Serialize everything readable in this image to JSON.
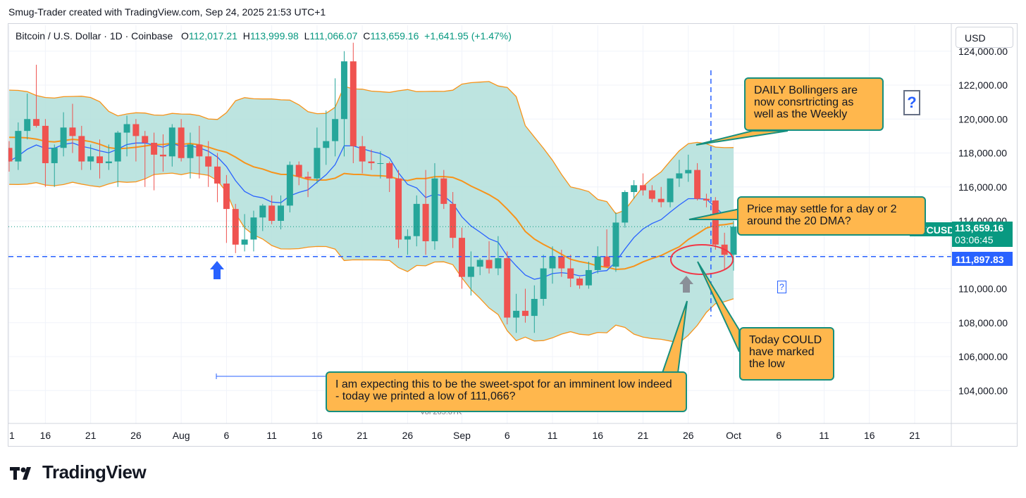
{
  "header": {
    "attribution": "Smug-Trader created with TradingView.com, Sep 24, 2025 21:53 UTC+1"
  },
  "legend": {
    "symbol": "Bitcoin / U.S. Dollar · 1D · Coinbase",
    "o_label": "O",
    "o": "112,017.21",
    "h_label": "H",
    "h": "113,999.98",
    "l_label": "L",
    "l": "111,066.07",
    "c_label": "C",
    "c": "113,659.16",
    "change": "+1,641.95 (+1.47%)"
  },
  "currency": "USD",
  "price_tags": {
    "symbol": "BTCUSD",
    "last_price": "113,659.16",
    "countdown": "03:06:45",
    "hline_price": "111,897.83"
  },
  "volume_label": "Vol 265.67K",
  "brand": "TradingView",
  "annotations": {
    "bollinger": "DAILY Bollingers are now consrtricting as well as the Weekly",
    "dma": "Price may settle for a day or 2 around the 20 DMA?",
    "low": "Today COULD have marked the low",
    "sweet_spot": "I am expecting this to be the sweet-spot for an imminent low indeed - today we printed a low of 111,066?",
    "question_big": "?",
    "question_small": "?"
  },
  "colors": {
    "up": "#26a69a",
    "down": "#ef5350",
    "band_fill": "#b2dfdb",
    "band_line": "#f7931a",
    "sma": "#f7931a",
    "fast_ma": "#2962ff",
    "callout_fill": "#ffb74d",
    "callout_border": "#168f7e",
    "hline": "#2962ff"
  },
  "chart_data": {
    "type": "candlestick",
    "y_axis": {
      "ticks": [
        104000,
        106000,
        108000,
        110000,
        114000,
        116000,
        118000,
        120000,
        122000,
        124000
      ],
      "tick_labels": [
        "104,000.00",
        "106,000.00",
        "108,000.00",
        "110,000.00",
        "114,000.00",
        "116,000.00",
        "118,000.00",
        "120,000.00",
        "122,000.00",
        "124,000.00"
      ],
      "range": [
        102000,
        125000
      ]
    },
    "x_axis": {
      "labels": [
        "1",
        "16",
        "21",
        "26",
        "Aug",
        "6",
        "11",
        "16",
        "21",
        "26",
        "Sep",
        "6",
        "11",
        "16",
        "21",
        "26",
        "Oct",
        "6",
        "11",
        "16",
        "21"
      ],
      "label_days": [
        0,
        4,
        9,
        14,
        19,
        24,
        29,
        34,
        39,
        44,
        50,
        55,
        60,
        65,
        70,
        75,
        80,
        85,
        90,
        95,
        100
      ]
    },
    "horizontal_line": 111897.83,
    "vertical_line_day": 77.5,
    "ohlc": [
      [
        118300,
        118700,
        116900,
        117500
      ],
      [
        117500,
        119800,
        117000,
        119300
      ],
      [
        119300,
        121500,
        118800,
        120000
      ],
      [
        120000,
        123200,
        119500,
        119600
      ],
      [
        119600,
        120000,
        116000,
        117400
      ],
      [
        117400,
        118500,
        116000,
        118300
      ],
      [
        118300,
        120400,
        117800,
        119500
      ],
      [
        119500,
        120900,
        118000,
        119000
      ],
      [
        119000,
        119600,
        117000,
        117500
      ],
      [
        117500,
        118500,
        117000,
        117800
      ],
      [
        117800,
        118800,
        116500,
        117400
      ],
      [
        117400,
        118500,
        117000,
        117500
      ],
      [
        117500,
        119300,
        116000,
        119200
      ],
      [
        119200,
        120200,
        117800,
        119700
      ],
      [
        119700,
        120000,
        117500,
        119000
      ],
      [
        119000,
        119300,
        116000,
        118600
      ],
      [
        118600,
        119200,
        115800,
        117900
      ],
      [
        117900,
        119100,
        116900,
        117800
      ],
      [
        117800,
        119700,
        117200,
        119500
      ],
      [
        119500,
        120000,
        117500,
        117700
      ],
      [
        117700,
        119200,
        116500,
        118500
      ],
      [
        118500,
        119600,
        116500,
        117800
      ],
      [
        117800,
        118700,
        116000,
        117200
      ],
      [
        117200,
        118000,
        115100,
        116200
      ],
      [
        116200,
        116700,
        112700,
        114700
      ],
      [
        114700,
        115000,
        112100,
        112600
      ],
      [
        112600,
        114400,
        112200,
        112900
      ],
      [
        112900,
        114600,
        112200,
        114200
      ],
      [
        114200,
        115000,
        113400,
        114900
      ],
      [
        114900,
        115500,
        113800,
        114000
      ],
      [
        114000,
        115500,
        113500,
        114900
      ],
      [
        114900,
        117500,
        114500,
        117300
      ],
      [
        117300,
        117500,
        116100,
        116600
      ],
      [
        116600,
        116900,
        115400,
        116500
      ],
      [
        116500,
        119500,
        116200,
        118300
      ],
      [
        118300,
        120500,
        117300,
        118700
      ],
      [
        118700,
        122400,
        117800,
        120000
      ],
      [
        120000,
        124000,
        117800,
        123400
      ],
      [
        123400,
        124500,
        117400,
        118400
      ],
      [
        118400,
        119000,
        116800,
        117500
      ],
      [
        117500,
        118200,
        117000,
        117400
      ],
      [
        117400,
        118100,
        116500,
        117400
      ],
      [
        117400,
        117500,
        115700,
        116500
      ],
      [
        116500,
        117000,
        112400,
        112900
      ],
      [
        112900,
        113500,
        112000,
        113100
      ],
      [
        113100,
        115500,
        112500,
        115000
      ],
      [
        115000,
        117000,
        112000,
        112800
      ],
      [
        112800,
        117400,
        112300,
        116500
      ],
      [
        116500,
        117000,
        114700,
        115000
      ],
      [
        115000,
        115700,
        112400,
        113000
      ],
      [
        113000,
        113600,
        110000,
        110700
      ],
      [
        110700,
        112200,
        109600,
        111300
      ],
      [
        111300,
        111800,
        110800,
        111700
      ],
      [
        111700,
        112800,
        110900,
        111200
      ],
      [
        111200,
        113100,
        110800,
        111800
      ],
      [
        111800,
        112200,
        107900,
        108300
      ],
      [
        108300,
        109700,
        107400,
        108700
      ],
      [
        108700,
        110000,
        108000,
        108400
      ],
      [
        108400,
        110200,
        107400,
        109400
      ],
      [
        109400,
        112000,
        109000,
        111200
      ],
      [
        111200,
        112500,
        110300,
        111900
      ],
      [
        111900,
        112300,
        110700,
        111200
      ],
      [
        111200,
        112000,
        110100,
        110600
      ],
      [
        110600,
        110700,
        110000,
        110200
      ],
      [
        110200,
        111600,
        110000,
        111100
      ],
      [
        111100,
        112500,
        110900,
        111900
      ],
      [
        111900,
        113500,
        111400,
        111300
      ],
      [
        111300,
        114500,
        111000,
        113900
      ],
      [
        113900,
        115800,
        113600,
        115700
      ],
      [
        115700,
        116400,
        115300,
        116100
      ],
      [
        116100,
        116800,
        115500,
        115800
      ],
      [
        115800,
        116100,
        115100,
        115300
      ],
      [
        115300,
        116000,
        114800,
        115100
      ],
      [
        115100,
        116500,
        114800,
        116500
      ],
      [
        116500,
        117600,
        116000,
        116800
      ],
      [
        116800,
        117900,
        116300,
        117000
      ],
      [
        117000,
        117400,
        115200,
        115300
      ],
      [
        115300,
        115600,
        114800,
        115200
      ],
      [
        115200,
        115400,
        112300,
        112600
      ],
      [
        112600,
        113300,
        111100,
        112000
      ],
      [
        112000,
        113999.98,
        111066.07,
        113659.16
      ]
    ],
    "series": [
      {
        "name": "BB basis (20 SMA)"
      },
      {
        "name": "Bollinger upper"
      },
      {
        "name": "Bollinger lower"
      },
      {
        "name": "Fast MA"
      }
    ]
  }
}
